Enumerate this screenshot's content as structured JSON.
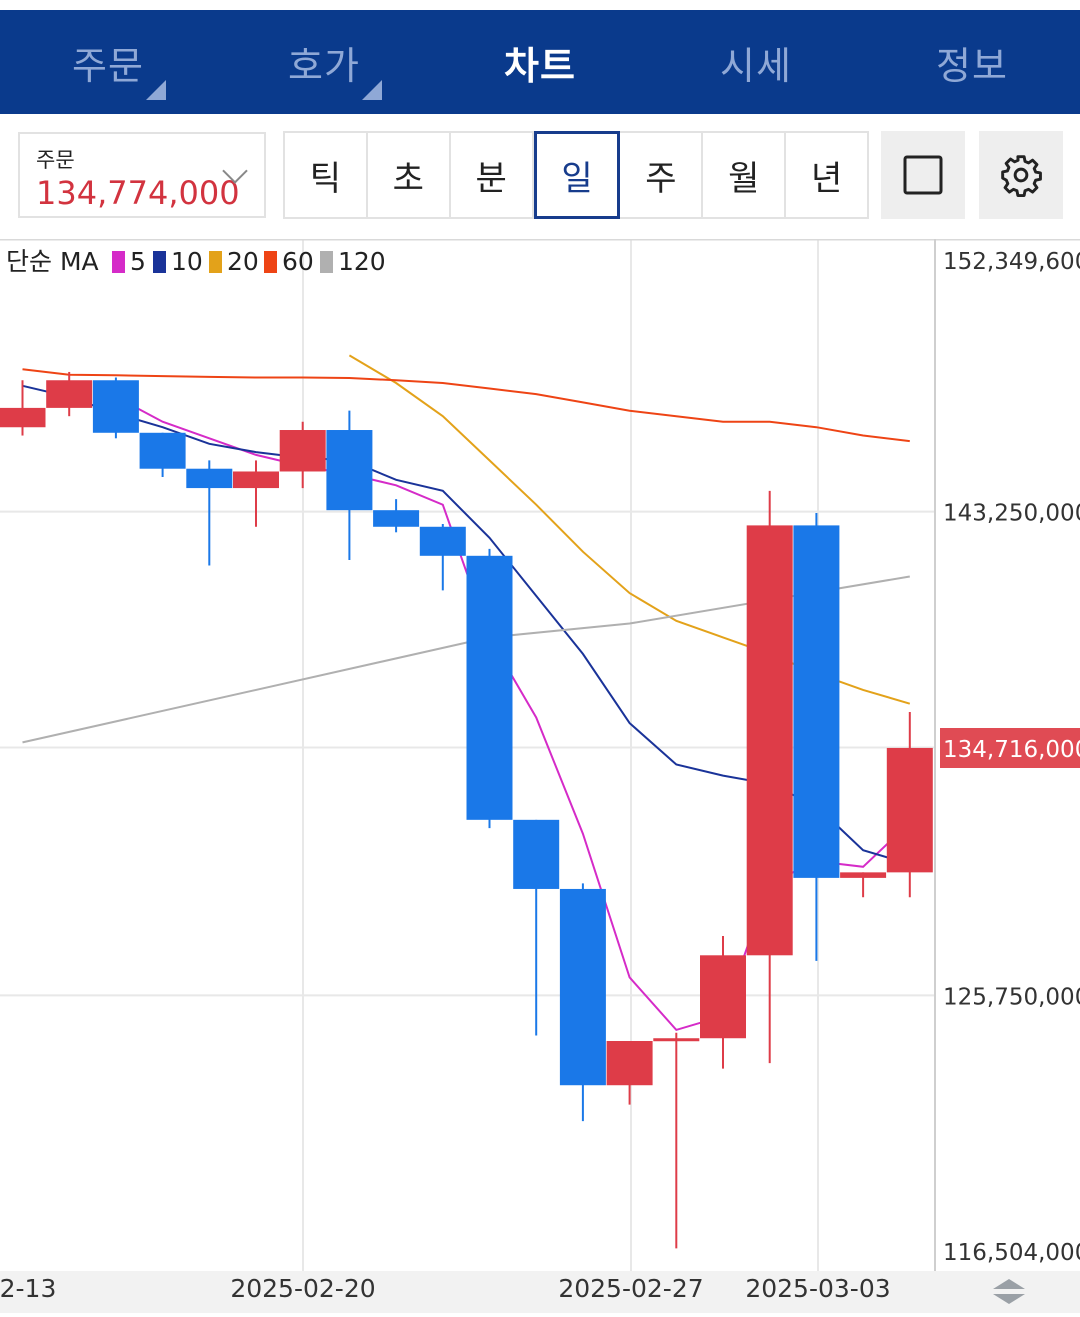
{
  "nav": {
    "tabs": [
      {
        "label": "주문",
        "active": false,
        "has_corner": true
      },
      {
        "label": "호가",
        "active": false,
        "has_corner": true
      },
      {
        "label": "차트",
        "active": true,
        "has_corner": false
      },
      {
        "label": "시세",
        "active": false,
        "has_corner": false
      },
      {
        "label": "정보",
        "active": false,
        "has_corner": false
      }
    ]
  },
  "order": {
    "label": "주문",
    "price": "134,774,000"
  },
  "periods": {
    "items": [
      "틱",
      "초",
      "분",
      "일",
      "주",
      "월",
      "년"
    ],
    "selected": "일"
  },
  "legend": {
    "prefix": "단순 MA",
    "entries": [
      {
        "label": "5",
        "color": "#d52bc8"
      },
      {
        "label": "10",
        "color": "#1a3399"
      },
      {
        "label": "20",
        "color": "#e3a21a"
      },
      {
        "label": "60",
        "color": "#ee4415"
      },
      {
        "label": "120",
        "color": "#b0b0b0"
      }
    ]
  },
  "chart_data": {
    "type": "candlestick",
    "colors": {
      "up": "#de3c48",
      "down": "#1a78e8",
      "grid": "#e8e8e8"
    },
    "y_axis": {
      "ticks": [
        "152,349,600",
        "143,250,000",
        "134,716,000",
        "125,750,000",
        "116,504,000"
      ],
      "ylim": [
        116504000,
        152349600
      ]
    },
    "x_axis": {
      "tick_labels": [
        "2-13",
        "2025-02-20",
        "2025-02-27",
        "2025-03-03"
      ]
    },
    "current_price_label": "134,716,000",
    "candles": [
      {
        "open": 146300000,
        "close": 147000000,
        "high": 148000000,
        "low": 146000000
      },
      {
        "open": 147000000,
        "close": 148000000,
        "high": 148300000,
        "low": 146700000
      },
      {
        "open": 148000000,
        "close": 146100000,
        "high": 148100000,
        "low": 145900000
      },
      {
        "open": 146100000,
        "close": 144800000,
        "high": 146100000,
        "low": 144500000
      },
      {
        "open": 144800000,
        "close": 144100000,
        "high": 145100000,
        "low": 141300000
      },
      {
        "open": 144100000,
        "close": 144700000,
        "high": 145100000,
        "low": 142700000
      },
      {
        "open": 144700000,
        "close": 146200000,
        "high": 146500000,
        "low": 144100000
      },
      {
        "open": 146200000,
        "close": 143300000,
        "high": 146900000,
        "low": 141500000
      },
      {
        "open": 143300000,
        "close": 142700000,
        "high": 143700000,
        "low": 142500000
      },
      {
        "open": 142700000,
        "close": 141650000,
        "high": 142800000,
        "low": 140400000
      },
      {
        "open": 141650000,
        "close": 132100000,
        "high": 141900000,
        "low": 131800000
      },
      {
        "open": 132100000,
        "close": 129600000,
        "high": 132100000,
        "low": 124300000
      },
      {
        "open": 129600000,
        "close": 122500000,
        "high": 129800000,
        "low": 121200000
      },
      {
        "open": 122500000,
        "close": 124100000,
        "high": 124100000,
        "low": 121800000
      },
      {
        "open": 124100000,
        "close": 124200000,
        "high": 124400000,
        "low": 116600000
      },
      {
        "open": 124200000,
        "close": 127200000,
        "high": 127900000,
        "low": 123100000
      },
      {
        "open": 127200000,
        "close": 142750000,
        "high": 144000000,
        "low": 123300000
      },
      {
        "open": 142750000,
        "close": 130000000,
        "high": 143200000,
        "low": 127000000
      },
      {
        "open": 130000000,
        "close": 130200000,
        "high": 130200000,
        "low": 129300000
      },
      {
        "open": 130200000,
        "close": 134700000,
        "high": 136000000,
        "low": 129300000
      }
    ],
    "ma": [
      {
        "period": "5",
        "values": [
          null,
          null,
          147400000,
          146500000,
          145900000,
          145300000,
          144900000,
          144600000,
          144200000,
          143500000,
          138700000,
          135800000,
          131600000,
          126400000,
          124500000,
          125000000,
          129800000,
          130600000,
          130400000,
          132000000
        ]
      },
      {
        "period": "10",
        "values": [
          147800000,
          147400000,
          146800000,
          146300000,
          145700000,
          145400000,
          145200000,
          145100000,
          144400000,
          144000000,
          142300000,
          140200000,
          138100000,
          135600000,
          134100000,
          133700000,
          133400000,
          132600000,
          131000000,
          130500000
        ]
      },
      {
        "period": "20",
        "values": [
          null,
          null,
          null,
          null,
          null,
          null,
          null,
          148900000,
          147900000,
          146700000,
          145100000,
          143500000,
          141800000,
          140300000,
          139300000,
          138700000,
          138100000,
          137400000,
          136800000,
          136300000
        ]
      },
      {
        "period": "60",
        "values": [
          148400000,
          148200000,
          148180000,
          148150000,
          148120000,
          148100000,
          148100000,
          148080000,
          148000000,
          147900000,
          147700000,
          147500000,
          147200000,
          146900000,
          146700000,
          146500000,
          146500000,
          146300000,
          146000000,
          145800000
        ]
      },
      {
        "period": "120",
        "values": [
          134900000,
          null,
          null,
          null,
          null,
          null,
          null,
          null,
          null,
          null,
          138700000,
          null,
          null,
          139200000,
          null,
          null,
          null,
          null,
          null,
          140900000
        ]
      }
    ]
  }
}
